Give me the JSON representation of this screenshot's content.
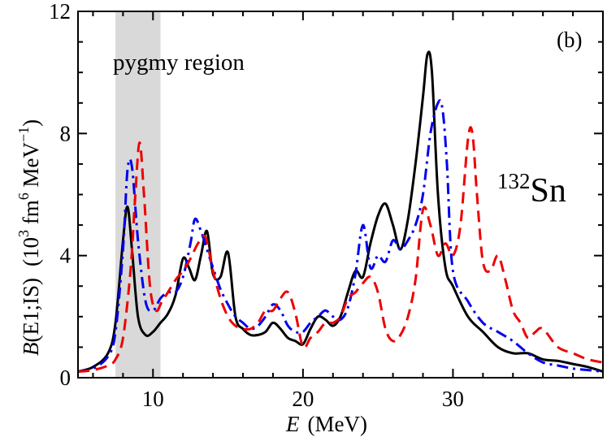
{
  "chart_data": {
    "type": "line",
    "xlabel": {
      "var": "E",
      "unit": "(MeV)"
    },
    "ylabel": {
      "func": "B",
      "arg": "(E1;IS)",
      "unit_open": "(10",
      "unit_exp1": "3",
      "unit_mid": " fm",
      "unit_exp2": "6",
      "unit_mev": " MeV",
      "unit_exp3": "−1",
      "unit_close": ")"
    },
    "xlim": [
      5,
      40
    ],
    "ylim": [
      0,
      12
    ],
    "xticks": [
      10,
      20,
      30
    ],
    "yticks": [
      0,
      4,
      8,
      12
    ],
    "panel_label": "(b)",
    "nucleus": {
      "mass": "132",
      "symbol": "Sn"
    },
    "shaded_region": {
      "x0": 7.5,
      "x1": 10.5,
      "label": "pygmy region",
      "color": "#d9d9d9"
    },
    "grid": false,
    "series": [
      {
        "color": "#000000",
        "style": "solid",
        "x": [
          5,
          6,
          7,
          7.5,
          8,
          8.3,
          8.6,
          9,
          9.5,
          10,
          10.5,
          11,
          11.5,
          12,
          12.4,
          12.8,
          13.2,
          13.6,
          14,
          14.5,
          15,
          15.5,
          16,
          16.5,
          17,
          17.5,
          18,
          18.5,
          19,
          19.5,
          20,
          20.5,
          21,
          21.5,
          22,
          22.5,
          23,
          23.5,
          24,
          24.5,
          25,
          25.5,
          26,
          26.5,
          27,
          27.5,
          28,
          28.3,
          28.6,
          29,
          29.5,
          30,
          31,
          32,
          33,
          34,
          35,
          36,
          37,
          38,
          39,
          40
        ],
        "y": [
          0.2,
          0.35,
          0.8,
          1.8,
          4.5,
          5.6,
          4.2,
          2.0,
          1.4,
          1.5,
          1.8,
          2.1,
          2.7,
          3.9,
          3.6,
          3.2,
          4.0,
          4.8,
          3.4,
          3.3,
          4.1,
          2.0,
          1.6,
          1.4,
          1.4,
          1.5,
          1.8,
          1.6,
          1.3,
          1.2,
          1.1,
          1.6,
          2.0,
          1.9,
          1.7,
          2.0,
          2.8,
          3.5,
          3.3,
          4.4,
          5.3,
          5.7,
          5.0,
          4.2,
          5.2,
          7.0,
          9.2,
          10.6,
          10.0,
          6.0,
          3.6,
          3.0,
          2.0,
          1.5,
          1.0,
          0.8,
          0.8,
          0.6,
          0.55,
          0.45,
          0.35,
          0.2
        ]
      },
      {
        "color": "#0000ee",
        "style": "dashdot",
        "x": [
          5,
          6,
          7,
          7.5,
          8,
          8.3,
          8.6,
          9,
          9.5,
          10,
          10.5,
          11,
          11.5,
          12,
          12.5,
          12.8,
          13.2,
          13.6,
          14,
          14.5,
          15,
          15.5,
          16,
          16.5,
          17,
          17.5,
          18,
          18.5,
          19,
          19.5,
          20,
          20.5,
          21,
          21.5,
          22,
          22.5,
          23,
          23.5,
          24,
          24.5,
          25,
          25.5,
          26,
          26.5,
          27,
          27.5,
          28,
          28.5,
          29,
          29.3,
          29.6,
          30,
          31,
          32,
          33,
          34,
          35,
          36,
          37,
          38,
          39,
          40
        ],
        "y": [
          0.2,
          0.3,
          0.7,
          1.5,
          4.2,
          6.8,
          6.9,
          4.5,
          2.5,
          2.2,
          2.6,
          2.8,
          2.8,
          3.3,
          4.4,
          5.2,
          4.8,
          4.2,
          3.6,
          2.9,
          2.4,
          2.0,
          1.8,
          1.6,
          1.7,
          2.0,
          2.4,
          2.2,
          1.7,
          1.5,
          1.5,
          1.8,
          2.0,
          2.2,
          2.0,
          1.9,
          2.3,
          3.4,
          5.0,
          3.6,
          4.0,
          3.8,
          4.5,
          4.2,
          4.5,
          5.0,
          6.0,
          8.0,
          9.0,
          8.8,
          7.0,
          3.5,
          2.5,
          1.8,
          1.5,
          1.2,
          0.8,
          0.5,
          0.4,
          0.3,
          0.25,
          0.2
        ]
      },
      {
        "color": "#ee0000",
        "style": "dashed",
        "x": [
          5,
          6,
          7,
          7.5,
          8,
          8.5,
          8.8,
          9.1,
          9.4,
          9.8,
          10.2,
          10.6,
          11,
          11.5,
          12,
          12.5,
          13,
          13.5,
          14,
          14.5,
          15,
          15.5,
          16,
          16.5,
          17,
          17.5,
          18,
          18.5,
          19,
          19.5,
          20,
          20.5,
          21,
          21.5,
          22,
          22.5,
          23,
          23.5,
          24,
          24.5,
          25,
          25.5,
          26,
          26.5,
          27,
          27.5,
          28,
          28.5,
          29,
          29.5,
          30,
          30.5,
          31,
          31.3,
          31.6,
          32,
          32.5,
          33,
          33.5,
          34,
          34.5,
          35,
          35.5,
          36,
          37,
          38,
          39,
          40
        ],
        "y": [
          0.2,
          0.25,
          0.4,
          0.6,
          1.3,
          3.5,
          5.8,
          7.7,
          6.0,
          3.0,
          2.2,
          2.5,
          2.8,
          3.2,
          3.5,
          3.9,
          4.4,
          4.6,
          3.5,
          2.6,
          2.0,
          1.7,
          1.6,
          1.6,
          1.8,
          2.2,
          2.2,
          2.6,
          2.8,
          2.1,
          1.0,
          1.3,
          1.5,
          1.8,
          1.8,
          2.0,
          2.6,
          2.8,
          3.1,
          3.3,
          2.8,
          1.6,
          1.2,
          1.4,
          2.0,
          3.2,
          5.5,
          5.0,
          4.0,
          4.4,
          4.0,
          5.0,
          7.8,
          8.0,
          6.0,
          3.8,
          3.5,
          4.0,
          3.2,
          2.2,
          1.8,
          1.3,
          1.5,
          1.6,
          1.0,
          0.8,
          0.6,
          0.5
        ]
      }
    ]
  }
}
